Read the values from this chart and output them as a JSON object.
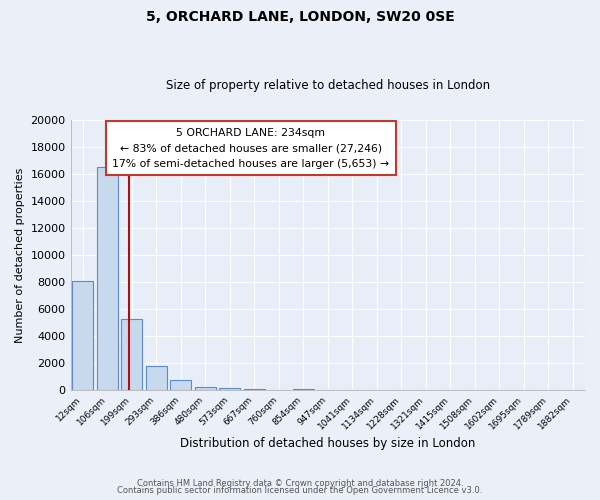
{
  "title": "5, ORCHARD LANE, LONDON, SW20 0SE",
  "subtitle": "Size of property relative to detached houses in London",
  "xlabel": "Distribution of detached houses by size in London",
  "ylabel": "Number of detached properties",
  "bar_labels": [
    "12sqm",
    "106sqm",
    "199sqm",
    "293sqm",
    "386sqm",
    "480sqm",
    "573sqm",
    "667sqm",
    "760sqm",
    "854sqm",
    "947sqm",
    "1041sqm",
    "1134sqm",
    "1228sqm",
    "1321sqm",
    "1415sqm",
    "1508sqm",
    "1602sqm",
    "1695sqm",
    "1789sqm",
    "1882sqm"
  ],
  "bar_values": [
    8100,
    16500,
    5300,
    1800,
    750,
    280,
    170,
    120,
    0,
    120,
    0,
    0,
    0,
    0,
    0,
    0,
    0,
    0,
    0,
    0,
    0
  ],
  "bar_color": "#c8d9ee",
  "bar_edge_color": "#5b8cc8",
  "red_line_x": 2.5,
  "ylim": [
    0,
    20000
  ],
  "yticks": [
    0,
    2000,
    4000,
    6000,
    8000,
    10000,
    12000,
    14000,
    16000,
    18000,
    20000
  ],
  "ytick_labels": [
    "0",
    "2000",
    "4000",
    "6000",
    "8000",
    "10000",
    "12000",
    "14000",
    "16000",
    "18000",
    "20000"
  ],
  "annotation_title": "5 ORCHARD LANE: 234sqm",
  "annotation_line1": "← 83% of detached houses are smaller (27,246)",
  "annotation_line2": "17% of semi-detached houses are larger (5,653) →",
  "footer_line1": "Contains HM Land Registry data © Crown copyright and database right 2024.",
  "footer_line2": "Contains public sector information licensed under the Open Government Licence v3.0.",
  "bg_color": "#eaeff8",
  "plot_bg_color": "#e8eef8",
  "grid_color": "#ffffff",
  "annotation_box_edge": "#c0392b"
}
